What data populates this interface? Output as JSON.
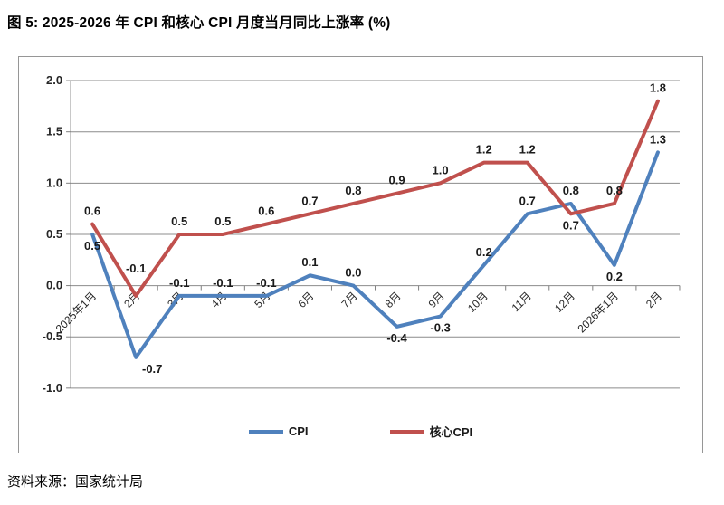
{
  "figure": {
    "title": "图 5: 2025-2026 年 CPI 和核心 CPI 月度当月同比上涨率 (%)",
    "source": "资料来源：国家统计局"
  },
  "legend": {
    "items": [
      {
        "label": "CPI",
        "color": "#4F81BD"
      },
      {
        "label": "核心CPI",
        "color": "#C0504D"
      }
    ]
  },
  "chart_data": {
    "type": "line",
    "title": "图 5: 2025-2026 年 CPI 和核心 CPI 月度当月同比上涨率 (%)",
    "categories": [
      "2025年1月",
      "2月",
      "3月",
      "4月",
      "5月",
      "6月",
      "7月",
      "8月",
      "9月",
      "10月",
      "11月",
      "12月",
      "2026年1月",
      "2月"
    ],
    "series": [
      {
        "name": "CPI",
        "color": "#4F81BD",
        "values": [
          0.5,
          -0.7,
          -0.1,
          -0.1,
          -0.1,
          0.1,
          0.0,
          -0.4,
          -0.3,
          0.2,
          0.7,
          0.8,
          0.2,
          1.3
        ],
        "labels": [
          "0.5",
          "-0.7",
          "-0.1",
          "-0.1",
          "-0.1",
          "0.1",
          "0.0",
          "-0.4",
          "-0.3",
          "0.2",
          "0.7",
          "0.8",
          "0.2",
          "1.3"
        ],
        "label_pos": [
          "below",
          "below-right",
          "above",
          "above",
          "above",
          "above",
          "above",
          "below",
          "below",
          "above",
          "above",
          "above",
          "below",
          "above"
        ]
      },
      {
        "name": "核心CPI",
        "color": "#C0504D",
        "values": [
          0.6,
          -0.1,
          0.5,
          0.5,
          0.6,
          0.7,
          0.8,
          0.9,
          1.0,
          1.2,
          1.2,
          0.7,
          0.8,
          1.8
        ],
        "labels": [
          "0.6",
          "-0.1",
          "0.5",
          "0.5",
          "0.6",
          "0.7",
          "0.8",
          "0.9",
          "1.0",
          "1.2",
          "1.2",
          "0.7",
          "0.8",
          "1.8"
        ],
        "label_pos": [
          "above",
          "above-far",
          "above",
          "above",
          "above",
          "above",
          "above",
          "above",
          "above",
          "above",
          "above",
          "below",
          "above",
          "above"
        ]
      }
    ],
    "xlabel": "",
    "ylabel": "",
    "ylim": [
      -1.0,
      2.0
    ],
    "yticks": [
      "2.0",
      "1.5",
      "1.0",
      "0.5",
      "0.0",
      "-0.5",
      "-1.0"
    ],
    "grid": true,
    "legend_position": "bottom-center",
    "axis_colors": {
      "grid": "#8C8C8C",
      "axis": "#7F7F7F",
      "tick_text": "#262626",
      "label_text": "#1A1A1A",
      "frame": "#969696"
    }
  }
}
